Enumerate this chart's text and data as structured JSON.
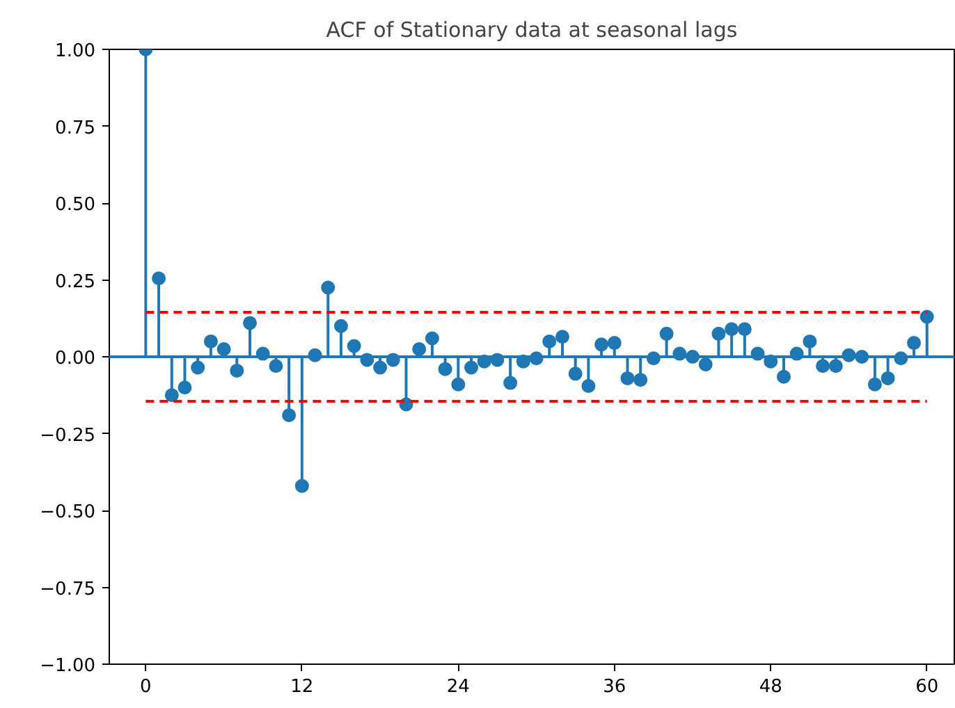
{
  "chart_data": {
    "type": "lollipop",
    "title": "ACF of Stationary data at seasonal lags",
    "x": [
      0,
      1,
      2,
      3,
      4,
      5,
      6,
      7,
      8,
      9,
      10,
      11,
      12,
      13,
      14,
      15,
      16,
      17,
      18,
      19,
      20,
      21,
      22,
      23,
      24,
      25,
      26,
      27,
      28,
      29,
      30,
      31,
      32,
      33,
      34,
      35,
      36,
      37,
      38,
      39,
      40,
      41,
      42,
      43,
      44,
      45,
      46,
      47,
      48,
      49,
      50,
      51,
      52,
      53,
      54,
      55,
      56,
      57,
      58,
      59,
      60
    ],
    "values": [
      1.0,
      0.255,
      -0.125,
      -0.1,
      -0.035,
      0.05,
      0.025,
      -0.045,
      0.11,
      0.01,
      -0.03,
      -0.19,
      -0.42,
      0.005,
      0.225,
      0.1,
      0.035,
      -0.01,
      -0.035,
      -0.01,
      -0.155,
      0.025,
      0.06,
      -0.04,
      -0.09,
      -0.035,
      -0.015,
      -0.01,
      -0.085,
      -0.015,
      -0.005,
      0.05,
      0.065,
      -0.055,
      -0.095,
      0.04,
      0.045,
      -0.07,
      -0.075,
      -0.005,
      0.075,
      0.01,
      0.0,
      -0.025,
      0.075,
      0.09,
      0.09,
      0.01,
      -0.015,
      -0.065,
      0.01,
      0.05,
      -0.03,
      -0.03,
      0.005,
      0.0,
      -0.09,
      -0.07,
      -0.005,
      0.045,
      0.13
    ],
    "color": "#1f77b4",
    "marker": "circle",
    "xlim": [
      -2.8,
      62.1
    ],
    "ylim": [
      -1,
      1
    ],
    "xticks": [
      0,
      12,
      24,
      36,
      48,
      60
    ],
    "yticks": [
      {
        "value": -1,
        "label": "−1.00"
      },
      {
        "value": -0.75,
        "label": "−0.75"
      },
      {
        "value": -0.5,
        "label": "−0.50"
      },
      {
        "value": -0.25,
        "label": "−0.25"
      },
      {
        "value": 0,
        "label": "0.00"
      },
      {
        "value": 0.25,
        "label": "0.25"
      },
      {
        "value": 0.5,
        "label": "0.50"
      },
      {
        "value": 0.75,
        "label": "0.75"
      },
      {
        "value": 1,
        "label": "1.00"
      }
    ],
    "ref_lines": [
      {
        "axis": "y",
        "value": 0,
        "color": "#1f77b4",
        "line_style": "solid"
      },
      {
        "axis": "y",
        "value": 0.145,
        "color": "#ff0000",
        "line_style": "dashed"
      },
      {
        "axis": "y",
        "value": -0.145,
        "color": "#ff0000",
        "line_style": "dashed"
      }
    ],
    "grid": false
  }
}
